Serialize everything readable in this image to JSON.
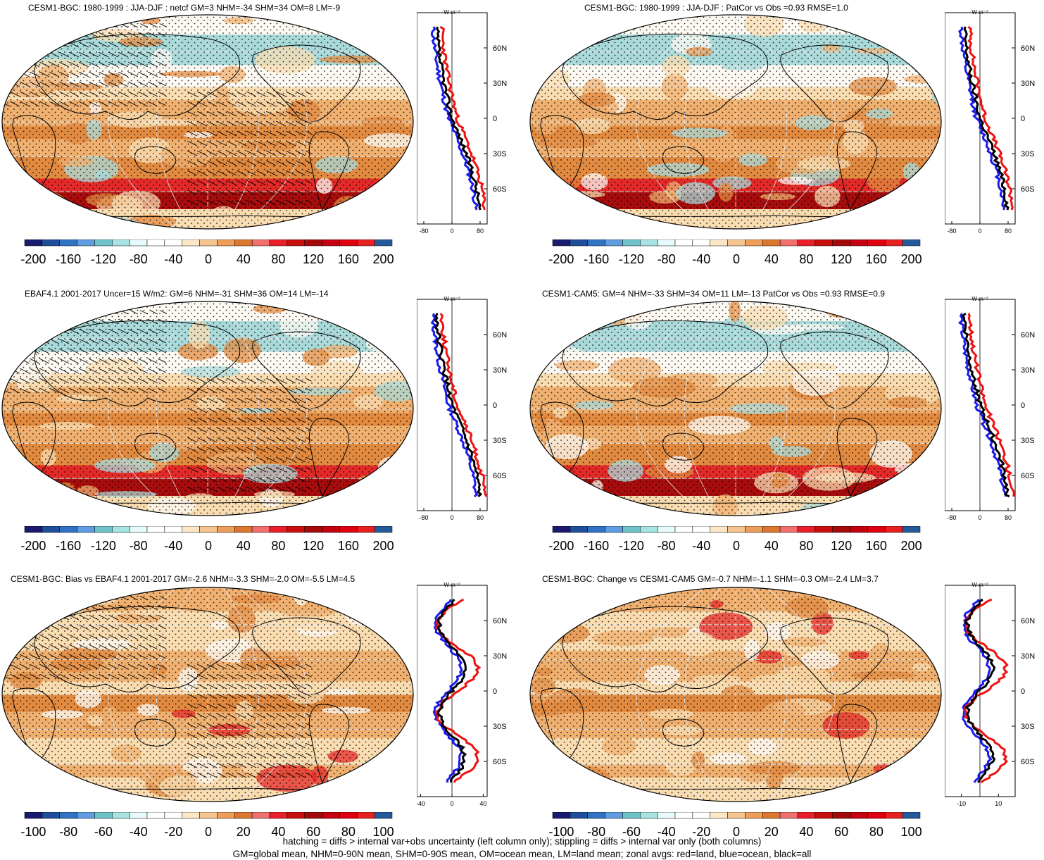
{
  "panels": [
    {
      "title": "CESM1-BGC: 1980-1999 : JJA-DJF : netcf GM=3 NHM=-34 SHM=34 OM=8 LM=-9",
      "hatched": true,
      "profile_xticks": [
        "-80",
        "0",
        "80"
      ],
      "profile_xvals": [
        -80,
        0,
        80
      ],
      "profile_xlim": [
        -100,
        100
      ],
      "colorbar_ticks": [
        "-200",
        "-160",
        "-120",
        "-80",
        "-40",
        "0",
        "40",
        "80",
        "120",
        "160",
        "200"
      ]
    },
    {
      "title": "CESM1-BGC: 1980-1999 : JJA-DJF : PatCor vs Obs =0.93 RMSE=1.0",
      "hatched": false,
      "profile_xticks": [
        "-80",
        "0",
        "80"
      ],
      "profile_xvals": [
        -80,
        0,
        80
      ],
      "profile_xlim": [
        -100,
        100
      ],
      "colorbar_ticks": [
        "-200",
        "-160",
        "-120",
        "-80",
        "-40",
        "0",
        "40",
        "80",
        "120",
        "160",
        "200"
      ]
    },
    {
      "title": "EBAF4.1 2001-2017 Uncer=15 W/m2: GM=6 NHM=-31 SHM=36 OM=14 LM=-14",
      "hatched": true,
      "profile_xticks": [
        "-80",
        "0",
        "80"
      ],
      "profile_xvals": [
        -80,
        0,
        80
      ],
      "profile_xlim": [
        -100,
        100
      ],
      "colorbar_ticks": [
        "-200",
        "-160",
        "-120",
        "-80",
        "-40",
        "0",
        "40",
        "80",
        "120",
        "160",
        "200"
      ]
    },
    {
      "title": "CESM1-CAM5: GM=4 NHM=-33 SHM=34 OM=11 LM=-13 PatCor vs Obs =0.93 RMSE=0.9",
      "hatched": false,
      "profile_xticks": [
        "-80",
        "0",
        "80"
      ],
      "profile_xvals": [
        -80,
        0,
        80
      ],
      "profile_xlim": [
        -100,
        100
      ],
      "colorbar_ticks": [
        "-200",
        "-160",
        "-120",
        "-80",
        "-40",
        "0",
        "40",
        "80",
        "120",
        "160",
        "200"
      ]
    },
    {
      "title": "CESM1-BGC: Bias vs EBAF4.1 2001-2017 GM=-2.6 NHM=-3.3 SHM=-2.0 OM=-5.5 LM=4.5",
      "hatched": true,
      "profile_xticks": [
        "-40",
        "0",
        "40"
      ],
      "profile_xvals": [
        -40,
        0,
        40
      ],
      "profile_xlim": [
        -45,
        45
      ],
      "colorbar_ticks": [
        "-100",
        "-80",
        "-60",
        "-40",
        "-20",
        "0",
        "20",
        "40",
        "60",
        "80",
        "100"
      ]
    },
    {
      "title": "CESM1-BGC: Change vs CESM1-CAM5 GM=-0.7 NHM=-1.1 SHM=-0.3 OM=-2.4 LM=3.7",
      "hatched": false,
      "profile_xticks": [
        "-10",
        "10"
      ],
      "profile_xvals": [
        -10,
        10
      ],
      "profile_xlim": [
        -19,
        19
      ],
      "colorbar_ticks": [
        "-100",
        "-80",
        "-60",
        "-40",
        "-20",
        "0",
        "20",
        "40",
        "60",
        "80",
        "100"
      ]
    }
  ],
  "profile_unit": "W m⁻²",
  "profile_lat_labels": [
    "60N",
    "30N",
    "0",
    "30S",
    "60S"
  ],
  "colorbar_colors": [
    "#1a1a6e",
    "#1f4f9a",
    "#2f73c4",
    "#5f9de0",
    "#6fc2c9",
    "#a6e3e3",
    "#e6fbfb",
    "#ffffff",
    "#ffffff",
    "#fbe7c6",
    "#f6c58f",
    "#ec9e5a",
    "#dc7630",
    "#f07070",
    "#e8202a",
    "#c80f10",
    "#a50a0a",
    "#c40012",
    "#de0010",
    "#e82020",
    "#245a9a"
  ],
  "map_colors": {
    "ocean_cold": "#a9d9d9",
    "neutral": "#fdfaf3",
    "light_orange": "#f9dcb0",
    "orange": "#f0b070",
    "dark_orange": "#e28a40",
    "red": "#e42a28",
    "dark_red": "#a80c0c",
    "coast": "#000000"
  },
  "line_colors": {
    "land": "#ee1111",
    "ocean": "#1a1aee",
    "all": "#000000"
  },
  "footer": {
    "line1": "hatching = diffs > internal var+obs uncertainty (left column only); stippling = diffs > internal var only (both columns)",
    "line2": "GM=global mean, NHM=0-90N mean, SHM=0-90S mean, OM=ocean mean, LM=land mean; zonal avgs: red=land, blue=ocean, black=all"
  }
}
